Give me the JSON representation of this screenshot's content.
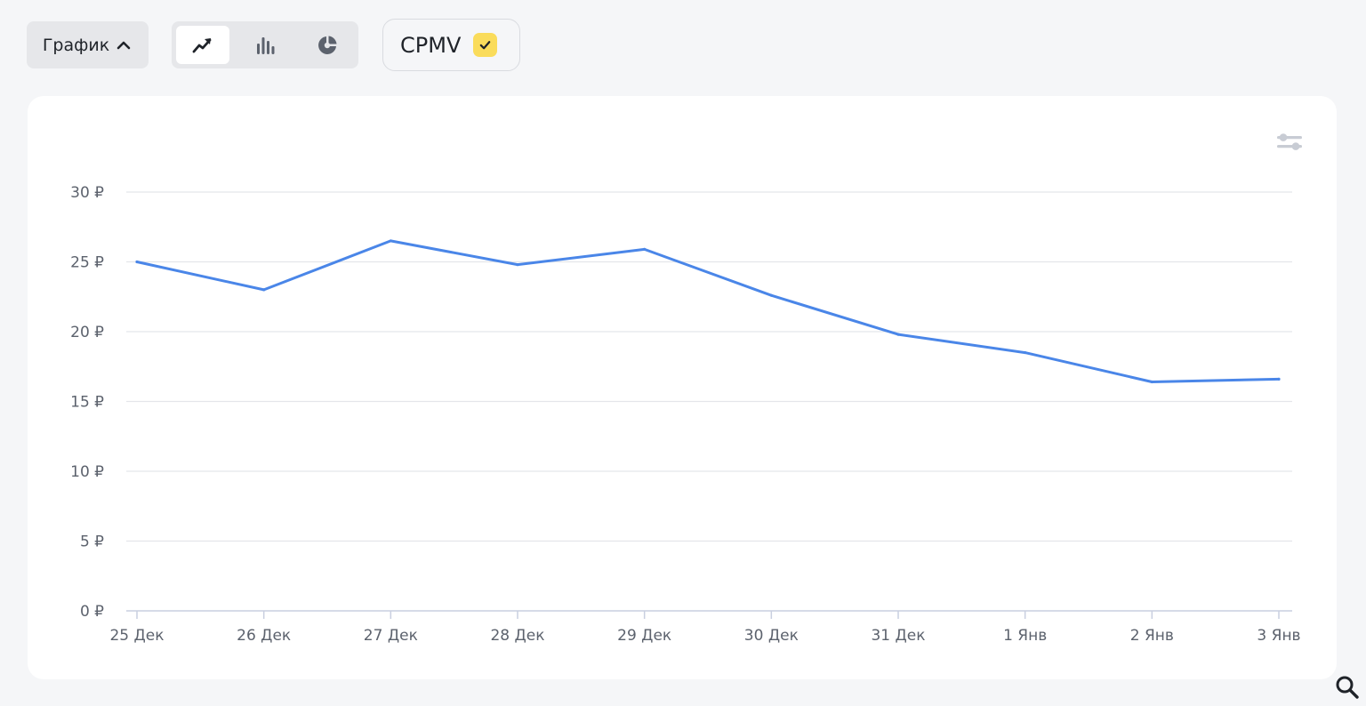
{
  "toolbar": {
    "view_label": "График",
    "chart_types": [
      {
        "name": "line",
        "icon": "line-chart-icon",
        "active": true
      },
      {
        "name": "bar",
        "icon": "bar-chart-icon",
        "active": false
      },
      {
        "name": "pie",
        "icon": "pie-chart-icon",
        "active": false
      }
    ],
    "metric_label": "CPMV",
    "metric_checked": true
  },
  "colors": {
    "line": "#4a86e8",
    "grid": "#e4e6ea",
    "axis": "#c9cfe0",
    "check_bg": "#fadc5b"
  },
  "chart_data": {
    "type": "line",
    "title": "",
    "xlabel": "",
    "ylabel": "",
    "categories": [
      "25 Дек",
      "26 Дек",
      "27 Дек",
      "28 Дек",
      "29 Дек",
      "30 Дек",
      "31 Дек",
      "1 Янв",
      "2 Янв",
      "3 Янв"
    ],
    "series": [
      {
        "name": "CPMV",
        "values": [
          25.0,
          23.0,
          26.5,
          24.8,
          25.9,
          22.6,
          19.8,
          18.5,
          16.4,
          16.6
        ]
      }
    ],
    "y_ticks": [
      0,
      5,
      10,
      15,
      20,
      25,
      30
    ],
    "y_tick_labels": [
      "0 ₽",
      "5 ₽",
      "10 ₽",
      "15 ₽",
      "20 ₽",
      "25 ₽",
      "30 ₽"
    ],
    "ylim": [
      0,
      30
    ],
    "grid": true,
    "legend": "none"
  }
}
